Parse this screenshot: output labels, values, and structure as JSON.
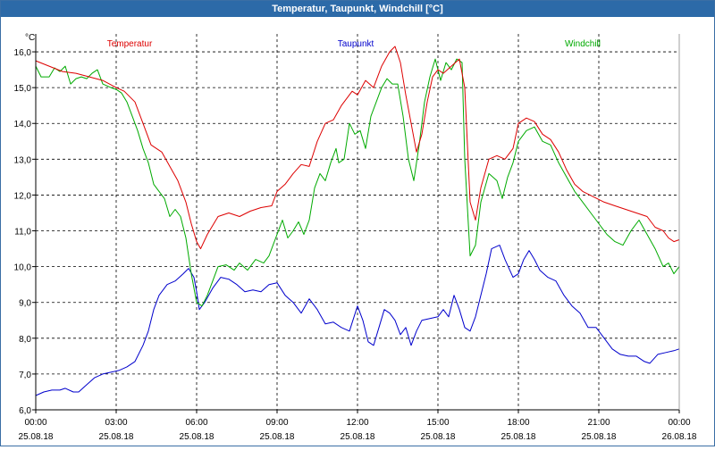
{
  "window": {
    "title": "Temperatur, Taupunkt, Windchill [°C]"
  },
  "chart_data": {
    "type": "line",
    "title": "Temperatur, Taupunkt, Windchill [°C]",
    "ylabel": "°C",
    "xlabel": "",
    "ylim": [
      6.0,
      16.5
    ],
    "xlim": [
      0,
      24
    ],
    "yticks": [
      "16,0",
      "15,0",
      "14,0",
      "13,0",
      "12,0",
      "11,0",
      "10,0",
      "9,0",
      "8,0",
      "7,0",
      "6,0"
    ],
    "ytick_values": [
      16,
      15,
      14,
      13,
      12,
      11,
      10,
      9,
      8,
      7,
      6
    ],
    "xticks": [
      {
        "time": "00:00",
        "date": "25.08.18",
        "hour": 0
      },
      {
        "time": "03:00",
        "date": "25.08.18",
        "hour": 3
      },
      {
        "time": "06:00",
        "date": "25.08.18",
        "hour": 6
      },
      {
        "time": "09:00",
        "date": "25.08.18",
        "hour": 9
      },
      {
        "time": "12:00",
        "date": "25.08.18",
        "hour": 12
      },
      {
        "time": "15:00",
        "date": "25.08.18",
        "hour": 15
      },
      {
        "time": "18:00",
        "date": "25.08.18",
        "hour": 18
      },
      {
        "time": "21:00",
        "date": "25.08.18",
        "hour": 21
      },
      {
        "time": "00:00",
        "date": "26.08.18",
        "hour": 24
      }
    ],
    "grid": true,
    "legend": "top",
    "series": [
      {
        "name": "Temperatur",
        "color": "#dd0000",
        "points": [
          [
            0,
            15.75
          ],
          [
            0.5,
            15.6
          ],
          [
            1,
            15.45
          ],
          [
            1.5,
            15.4
          ],
          [
            2,
            15.3
          ],
          [
            2.5,
            15.2
          ],
          [
            3,
            15.0
          ],
          [
            3.3,
            14.9
          ],
          [
            3.7,
            14.6
          ],
          [
            4,
            14.0
          ],
          [
            4.3,
            13.4
          ],
          [
            4.7,
            13.2
          ],
          [
            5,
            12.8
          ],
          [
            5.3,
            12.4
          ],
          [
            5.6,
            11.8
          ],
          [
            5.8,
            11.2
          ],
          [
            6,
            10.7
          ],
          [
            6.15,
            10.5
          ],
          [
            6.4,
            10.9
          ],
          [
            6.8,
            11.4
          ],
          [
            7.2,
            11.5
          ],
          [
            7.6,
            11.4
          ],
          [
            8,
            11.55
          ],
          [
            8.4,
            11.65
          ],
          [
            8.8,
            11.7
          ],
          [
            9,
            12.1
          ],
          [
            9.3,
            12.3
          ],
          [
            9.6,
            12.6
          ],
          [
            9.9,
            12.85
          ],
          [
            10.2,
            12.8
          ],
          [
            10.5,
            13.5
          ],
          [
            10.8,
            14.0
          ],
          [
            11.1,
            14.1
          ],
          [
            11.4,
            14.5
          ],
          [
            11.8,
            14.9
          ],
          [
            12,
            14.8
          ],
          [
            12.3,
            15.2
          ],
          [
            12.6,
            15.0
          ],
          [
            12.9,
            15.6
          ],
          [
            13.2,
            16.0
          ],
          [
            13.4,
            16.15
          ],
          [
            13.6,
            15.7
          ],
          [
            13.8,
            14.8
          ],
          [
            14,
            14.0
          ],
          [
            14.2,
            13.2
          ],
          [
            14.4,
            13.7
          ],
          [
            14.6,
            14.6
          ],
          [
            14.8,
            15.3
          ],
          [
            15,
            15.5
          ],
          [
            15.2,
            15.4
          ],
          [
            15.5,
            15.6
          ],
          [
            15.8,
            15.8
          ],
          [
            16,
            15.0
          ],
          [
            16.2,
            11.8
          ],
          [
            16.4,
            11.3
          ],
          [
            16.6,
            12.2
          ],
          [
            16.9,
            13.0
          ],
          [
            17.2,
            13.1
          ],
          [
            17.5,
            13.0
          ],
          [
            17.8,
            13.3
          ],
          [
            18,
            14.0
          ],
          [
            18.3,
            14.15
          ],
          [
            18.6,
            14.05
          ],
          [
            18.9,
            13.7
          ],
          [
            19.2,
            13.55
          ],
          [
            19.5,
            13.2
          ],
          [
            19.8,
            12.7
          ],
          [
            20.1,
            12.3
          ],
          [
            20.4,
            12.1
          ],
          [
            20.8,
            11.95
          ],
          [
            21.2,
            11.8
          ],
          [
            21.6,
            11.7
          ],
          [
            22,
            11.6
          ],
          [
            22.4,
            11.5
          ],
          [
            22.8,
            11.4
          ],
          [
            23.1,
            11.1
          ],
          [
            23.4,
            11.0
          ],
          [
            23.6,
            10.8
          ],
          [
            23.8,
            10.7
          ],
          [
            24,
            10.75
          ]
        ]
      },
      {
        "name": "Taupunkt",
        "color": "#0000cc",
        "points": [
          [
            0,
            6.4
          ],
          [
            0.3,
            6.5
          ],
          [
            0.6,
            6.55
          ],
          [
            0.9,
            6.55
          ],
          [
            1.1,
            6.6
          ],
          [
            1.4,
            6.5
          ],
          [
            1.6,
            6.5
          ],
          [
            1.9,
            6.7
          ],
          [
            2.2,
            6.9
          ],
          [
            2.5,
            7.0
          ],
          [
            2.8,
            7.05
          ],
          [
            3.1,
            7.1
          ],
          [
            3.4,
            7.2
          ],
          [
            3.7,
            7.35
          ],
          [
            4,
            7.8
          ],
          [
            4.2,
            8.2
          ],
          [
            4.4,
            8.8
          ],
          [
            4.6,
            9.2
          ],
          [
            4.9,
            9.5
          ],
          [
            5.2,
            9.6
          ],
          [
            5.5,
            9.8
          ],
          [
            5.7,
            9.95
          ],
          [
            5.9,
            9.7
          ],
          [
            6,
            9.3
          ],
          [
            6.1,
            8.8
          ],
          [
            6.3,
            9.0
          ],
          [
            6.6,
            9.4
          ],
          [
            6.9,
            9.7
          ],
          [
            7.2,
            9.65
          ],
          [
            7.5,
            9.5
          ],
          [
            7.8,
            9.3
          ],
          [
            8.1,
            9.35
          ],
          [
            8.4,
            9.3
          ],
          [
            8.7,
            9.5
          ],
          [
            9,
            9.55
          ],
          [
            9.3,
            9.2
          ],
          [
            9.6,
            9.0
          ],
          [
            9.9,
            8.7
          ],
          [
            10.2,
            9.1
          ],
          [
            10.5,
            8.8
          ],
          [
            10.8,
            8.4
          ],
          [
            11.1,
            8.45
          ],
          [
            11.4,
            8.3
          ],
          [
            11.7,
            8.2
          ],
          [
            12,
            8.9
          ],
          [
            12.2,
            8.5
          ],
          [
            12.4,
            7.9
          ],
          [
            12.6,
            7.8
          ],
          [
            12.8,
            8.3
          ],
          [
            13,
            8.8
          ],
          [
            13.2,
            8.7
          ],
          [
            13.4,
            8.5
          ],
          [
            13.6,
            8.1
          ],
          [
            13.8,
            8.3
          ],
          [
            14,
            7.8
          ],
          [
            14.2,
            8.2
          ],
          [
            14.4,
            8.5
          ],
          [
            14.7,
            8.55
          ],
          [
            15,
            8.6
          ],
          [
            15.2,
            8.8
          ],
          [
            15.4,
            8.6
          ],
          [
            15.6,
            9.2
          ],
          [
            15.8,
            8.8
          ],
          [
            16,
            8.3
          ],
          [
            16.2,
            8.2
          ],
          [
            16.4,
            8.6
          ],
          [
            16.6,
            9.2
          ],
          [
            16.8,
            9.8
          ],
          [
            17,
            10.5
          ],
          [
            17.3,
            10.6
          ],
          [
            17.5,
            10.2
          ],
          [
            17.8,
            9.7
          ],
          [
            18,
            9.8
          ],
          [
            18.2,
            10.2
          ],
          [
            18.4,
            10.45
          ],
          [
            18.6,
            10.2
          ],
          [
            18.8,
            9.9
          ],
          [
            19.1,
            9.7
          ],
          [
            19.4,
            9.6
          ],
          [
            19.7,
            9.2
          ],
          [
            20,
            8.9
          ],
          [
            20.3,
            8.7
          ],
          [
            20.6,
            8.3
          ],
          [
            20.9,
            8.3
          ],
          [
            21.2,
            8.0
          ],
          [
            21.5,
            7.7
          ],
          [
            21.8,
            7.55
          ],
          [
            22.1,
            7.5
          ],
          [
            22.4,
            7.5
          ],
          [
            22.7,
            7.35
          ],
          [
            22.9,
            7.3
          ],
          [
            23.2,
            7.55
          ],
          [
            23.5,
            7.6
          ],
          [
            23.8,
            7.65
          ],
          [
            24,
            7.7
          ]
        ]
      },
      {
        "name": "Windchill",
        "color": "#00aa00",
        "points": [
          [
            0,
            15.6
          ],
          [
            0.2,
            15.3
          ],
          [
            0.5,
            15.3
          ],
          [
            0.7,
            15.55
          ],
          [
            0.9,
            15.45
          ],
          [
            1.1,
            15.6
          ],
          [
            1.3,
            15.1
          ],
          [
            1.5,
            15.25
          ],
          [
            1.7,
            15.3
          ],
          [
            1.9,
            15.25
          ],
          [
            2.1,
            15.4
          ],
          [
            2.3,
            15.5
          ],
          [
            2.5,
            15.1
          ],
          [
            2.8,
            15.0
          ],
          [
            3.0,
            14.95
          ],
          [
            3.2,
            14.85
          ],
          [
            3.4,
            14.6
          ],
          [
            3.6,
            14.2
          ],
          [
            3.8,
            13.8
          ],
          [
            4.0,
            13.3
          ],
          [
            4.2,
            12.9
          ],
          [
            4.4,
            12.3
          ],
          [
            4.6,
            12.1
          ],
          [
            4.8,
            11.9
          ],
          [
            5.0,
            11.4
          ],
          [
            5.2,
            11.6
          ],
          [
            5.4,
            11.4
          ],
          [
            5.6,
            10.8
          ],
          [
            5.8,
            9.8
          ],
          [
            6,
            9.0
          ],
          [
            6.2,
            8.9
          ],
          [
            6.4,
            9.2
          ],
          [
            6.6,
            9.6
          ],
          [
            6.8,
            10.0
          ],
          [
            7.1,
            10.05
          ],
          [
            7.4,
            9.9
          ],
          [
            7.6,
            10.1
          ],
          [
            7.9,
            9.9
          ],
          [
            8.2,
            10.2
          ],
          [
            8.5,
            10.1
          ],
          [
            8.7,
            10.3
          ],
          [
            9,
            10.9
          ],
          [
            9.2,
            11.3
          ],
          [
            9.4,
            10.8
          ],
          [
            9.6,
            11.0
          ],
          [
            9.8,
            11.25
          ],
          [
            10.0,
            10.9
          ],
          [
            10.2,
            11.3
          ],
          [
            10.4,
            12.2
          ],
          [
            10.6,
            12.6
          ],
          [
            10.8,
            12.4
          ],
          [
            11.0,
            12.9
          ],
          [
            11.2,
            13.3
          ],
          [
            11.3,
            12.9
          ],
          [
            11.5,
            13.0
          ],
          [
            11.7,
            14.0
          ],
          [
            11.9,
            13.7
          ],
          [
            12.1,
            13.8
          ],
          [
            12.3,
            13.3
          ],
          [
            12.5,
            14.2
          ],
          [
            12.7,
            14.6
          ],
          [
            12.9,
            15.0
          ],
          [
            13.1,
            15.25
          ],
          [
            13.3,
            15.1
          ],
          [
            13.5,
            15.1
          ],
          [
            13.7,
            14.2
          ],
          [
            13.9,
            13.0
          ],
          [
            14.1,
            12.4
          ],
          [
            14.3,
            13.4
          ],
          [
            14.5,
            14.6
          ],
          [
            14.7,
            15.3
          ],
          [
            14.9,
            15.8
          ],
          [
            15.1,
            15.2
          ],
          [
            15.3,
            15.7
          ],
          [
            15.5,
            15.5
          ],
          [
            15.7,
            15.8
          ],
          [
            15.9,
            15.7
          ],
          [
            16.0,
            13.0
          ],
          [
            16.2,
            10.3
          ],
          [
            16.4,
            10.6
          ],
          [
            16.6,
            11.8
          ],
          [
            16.9,
            12.6
          ],
          [
            17.2,
            12.4
          ],
          [
            17.4,
            11.9
          ],
          [
            17.6,
            12.5
          ],
          [
            17.8,
            12.9
          ],
          [
            18,
            13.5
          ],
          [
            18.3,
            13.8
          ],
          [
            18.6,
            13.9
          ],
          [
            18.9,
            13.5
          ],
          [
            19.2,
            13.4
          ],
          [
            19.5,
            12.9
          ],
          [
            19.8,
            12.5
          ],
          [
            20.1,
            12.1
          ],
          [
            20.4,
            11.8
          ],
          [
            20.7,
            11.5
          ],
          [
            21,
            11.2
          ],
          [
            21.3,
            10.9
          ],
          [
            21.6,
            10.7
          ],
          [
            21.9,
            10.6
          ],
          [
            22.2,
            11.0
          ],
          [
            22.5,
            11.3
          ],
          [
            22.8,
            10.9
          ],
          [
            23.1,
            10.5
          ],
          [
            23.4,
            10.0
          ],
          [
            23.6,
            10.1
          ],
          [
            23.8,
            9.8
          ],
          [
            24,
            10.0
          ]
        ]
      }
    ]
  }
}
